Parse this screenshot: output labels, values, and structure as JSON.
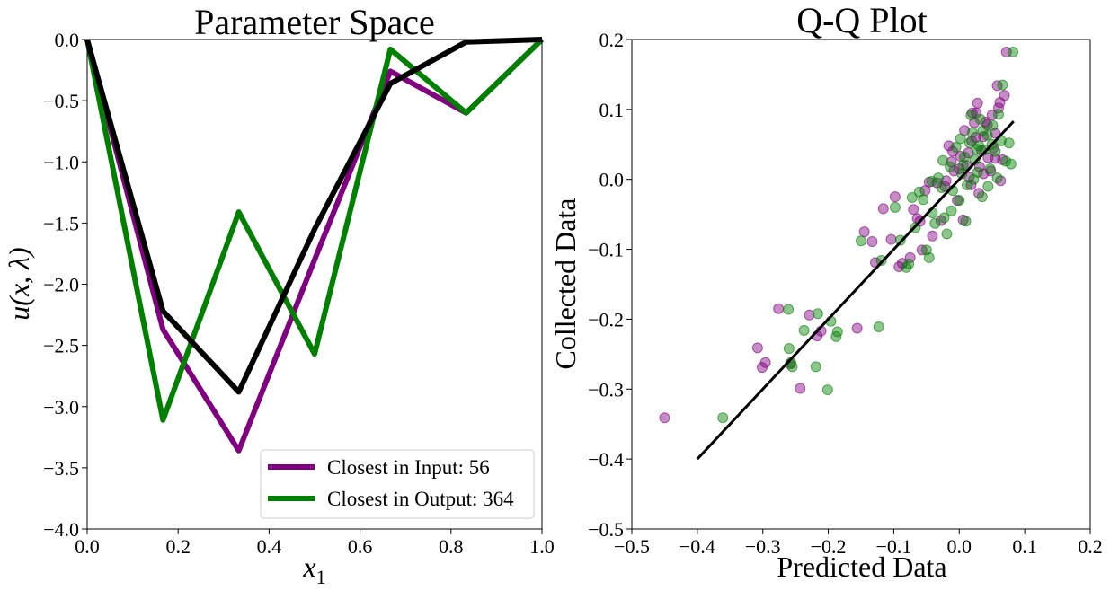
{
  "chart_data": [
    {
      "type": "line",
      "title": "Parameter Space",
      "xlabel_base": "x",
      "xlabel_sub": "1",
      "ylabel": "u(x, λ)",
      "xlim": [
        0.0,
        1.0
      ],
      "ylim": [
        -4.0,
        0.0
      ],
      "xticks": [
        0.0,
        0.2,
        0.4,
        0.6,
        0.8,
        1.0
      ],
      "yticks": [
        0.0,
        -0.5,
        -1.0,
        -1.5,
        -2.0,
        -2.5,
        -3.0,
        -3.5,
        -4.0
      ],
      "legend_position": "bottom-right",
      "series": [
        {
          "name": "Closest in Input: 56",
          "color": "#800080",
          "x": [
            0.0,
            0.1667,
            0.3333,
            0.5,
            0.6667,
            0.8333,
            1.0
          ],
          "y": [
            0.0,
            -2.37,
            -3.36,
            -1.8,
            -0.26,
            -0.6,
            0.0
          ]
        },
        {
          "name": "Closest in Output: 364",
          "color": "#008000",
          "x": [
            0.0,
            0.1667,
            0.3333,
            0.5,
            0.6667,
            0.8333,
            1.0
          ],
          "y": [
            0.0,
            -3.11,
            -1.41,
            -2.57,
            -0.08,
            -0.6,
            0.0
          ]
        },
        {
          "name": "",
          "color": "#000000",
          "x": [
            0.0,
            0.1667,
            0.3333,
            0.5,
            0.6667,
            0.8333,
            1.0
          ],
          "y": [
            0.0,
            -2.22,
            -2.88,
            -1.55,
            -0.36,
            -0.02,
            0.0
          ]
        }
      ]
    },
    {
      "type": "scatter",
      "title": "Q-Q Plot",
      "xlabel": "Predicted Data",
      "ylabel": "Collected Data",
      "xlim": [
        -0.5,
        0.2
      ],
      "ylim": [
        -0.5,
        0.2
      ],
      "xticks": [
        -0.5,
        -0.4,
        -0.3,
        -0.2,
        -0.1,
        0.0,
        0.1,
        0.2
      ],
      "yticks": [
        0.2,
        0.1,
        0.0,
        -0.1,
        -0.2,
        -0.3,
        -0.4,
        -0.5
      ],
      "reference_line": {
        "color": "#000000",
        "x": [
          -0.4,
          0.083
        ],
        "y": [
          -0.4,
          0.083
        ]
      },
      "series": [
        {
          "color": "#800080",
          "opacity": 0.45,
          "points": [
            [
              -0.45,
              -0.341
            ],
            [
              -0.308,
              -0.241
            ],
            [
              -0.301,
              -0.269
            ],
            [
              -0.296,
              -0.262
            ],
            [
              -0.276,
              -0.185
            ],
            [
              -0.258,
              -0.264
            ],
            [
              -0.243,
              -0.299
            ],
            [
              -0.229,
              -0.194
            ],
            [
              -0.217,
              -0.224
            ],
            [
              -0.211,
              -0.217
            ],
            [
              -0.156,
              -0.213
            ],
            [
              -0.145,
              -0.075
            ],
            [
              -0.133,
              -0.089
            ],
            [
              -0.128,
              -0.119
            ],
            [
              -0.116,
              -0.042
            ],
            [
              -0.104,
              -0.086
            ],
            [
              -0.098,
              -0.025
            ],
            [
              -0.092,
              -0.125
            ],
            [
              -0.087,
              -0.12
            ],
            [
              -0.075,
              -0.112
            ],
            [
              -0.07,
              -0.043
            ],
            [
              -0.064,
              -0.056
            ],
            [
              -0.057,
              -0.101
            ],
            [
              -0.052,
              -0.016
            ],
            [
              -0.046,
              -0.004
            ],
            [
              -0.041,
              -0.081
            ],
            [
              -0.034,
              -0.005
            ],
            [
              -0.028,
              -0.059
            ],
            [
              -0.022,
              -0.01
            ],
            [
              -0.016,
              0.048
            ],
            [
              -0.012,
              0.025
            ],
            [
              -0.008,
              0.012
            ],
            [
              -0.003,
              -0.03
            ],
            [
              0.002,
              0.033
            ],
            [
              0.006,
              -0.058
            ],
            [
              0.011,
              0.02
            ],
            [
              0.015,
              0.003
            ],
            [
              0.019,
              0.055
            ],
            [
              0.023,
              0.081
            ],
            [
              0.026,
              0.095
            ],
            [
              0.028,
              0.109
            ],
            [
              0.031,
              0.018
            ],
            [
              0.034,
              0.041
            ],
            [
              0.037,
              0.061
            ],
            [
              0.04,
              0.082
            ],
            [
              0.044,
              0.031
            ],
            [
              0.048,
              0.012
            ],
            [
              0.052,
              0.045
            ],
            [
              0.055,
              0.066
            ],
            [
              0.058,
              0.134
            ],
            [
              0.06,
              0.102
            ],
            [
              0.063,
              -0.002
            ],
            [
              0.066,
              0.028
            ],
            [
              0.069,
              0.12
            ],
            [
              0.072,
              0.182
            ],
            [
              -0.01,
              0.04
            ],
            [
              0.0,
              0.015
            ],
            [
              0.008,
              0.07
            ],
            [
              0.014,
              0.038
            ],
            [
              0.02,
              0.095
            ],
            [
              0.03,
              -0.02
            ],
            [
              0.037,
              0.008
            ],
            [
              0.043,
              0.078
            ],
            [
              0.05,
              0.092
            ],
            [
              -0.02,
              -0.002
            ],
            [
              0.025,
              0.06
            ],
            [
              0.055,
              0.03
            ],
            [
              0.062,
              0.11
            ],
            [
              -0.06,
              -0.06
            ],
            [
              0.018,
              -0.008
            ]
          ]
        },
        {
          "color": "#008000",
          "opacity": 0.45,
          "points": [
            [
              -0.361,
              -0.341
            ],
            [
              -0.261,
              -0.186
            ],
            [
              -0.26,
              -0.242
            ],
            [
              -0.257,
              -0.262
            ],
            [
              -0.255,
              -0.268
            ],
            [
              -0.237,
              -0.216
            ],
            [
              -0.219,
              -0.268
            ],
            [
              -0.216,
              -0.192
            ],
            [
              -0.201,
              -0.301
            ],
            [
              -0.196,
              -0.203
            ],
            [
              -0.188,
              -0.225
            ],
            [
              -0.186,
              -0.218
            ],
            [
              -0.15,
              -0.088
            ],
            [
              -0.123,
              -0.211
            ],
            [
              -0.119,
              -0.116
            ],
            [
              -0.098,
              -0.04
            ],
            [
              -0.09,
              -0.087
            ],
            [
              -0.081,
              -0.126
            ],
            [
              -0.077,
              -0.121
            ],
            [
              -0.072,
              -0.026
            ],
            [
              -0.067,
              -0.069
            ],
            [
              -0.061,
              -0.018
            ],
            [
              -0.055,
              -0.029
            ],
            [
              -0.05,
              -0.101
            ],
            [
              -0.046,
              -0.112
            ],
            [
              -0.041,
              -0.048
            ],
            [
              -0.037,
              -0.063
            ],
            [
              -0.032,
              0.002
            ],
            [
              -0.027,
              -0.012
            ],
            [
              -0.023,
              -0.055
            ],
            [
              -0.019,
              -0.078
            ],
            [
              -0.014,
              0.018
            ],
            [
              -0.01,
              -0.016
            ],
            [
              -0.005,
              0.046
            ],
            [
              0.0,
              -0.03
            ],
            [
              0.004,
              0.008
            ],
            [
              0.008,
              0.032
            ],
            [
              0.012,
              -0.008
            ],
            [
              0.016,
              0.052
            ],
            [
              0.02,
              0.067
            ],
            [
              0.024,
              0.028
            ],
            [
              0.028,
              0.01
            ],
            [
              0.032,
              0.086
            ],
            [
              0.035,
              -0.025
            ],
            [
              0.039,
              0.042
            ],
            [
              0.043,
              0.063
            ],
            [
              0.047,
              0.015
            ],
            [
              0.051,
              0.077
            ],
            [
              0.055,
              0.04
            ],
            [
              0.06,
              0.093
            ],
            [
              0.066,
              0.135
            ],
            [
              0.071,
              0.026
            ],
            [
              0.076,
              0.052
            ],
            [
              0.079,
              0.022
            ],
            [
              0.082,
              0.182
            ],
            [
              -0.025,
              0.027
            ],
            [
              0.002,
              0.058
            ],
            [
              0.01,
              -0.06
            ],
            [
              0.018,
              0.092
            ],
            [
              0.027,
              0.043
            ],
            [
              0.036,
              0.07
            ],
            [
              0.044,
              -0.01
            ],
            [
              0.058,
              0.002
            ],
            [
              0.064,
              0.055
            ],
            [
              -0.012,
              -0.045
            ],
            [
              0.006,
              0.02
            ],
            [
              0.03,
              0.048
            ],
            [
              0.05,
              0.05
            ],
            [
              -0.042,
              -0.003
            ],
            [
              0.022,
              0.0
            ]
          ]
        }
      ]
    }
  ]
}
